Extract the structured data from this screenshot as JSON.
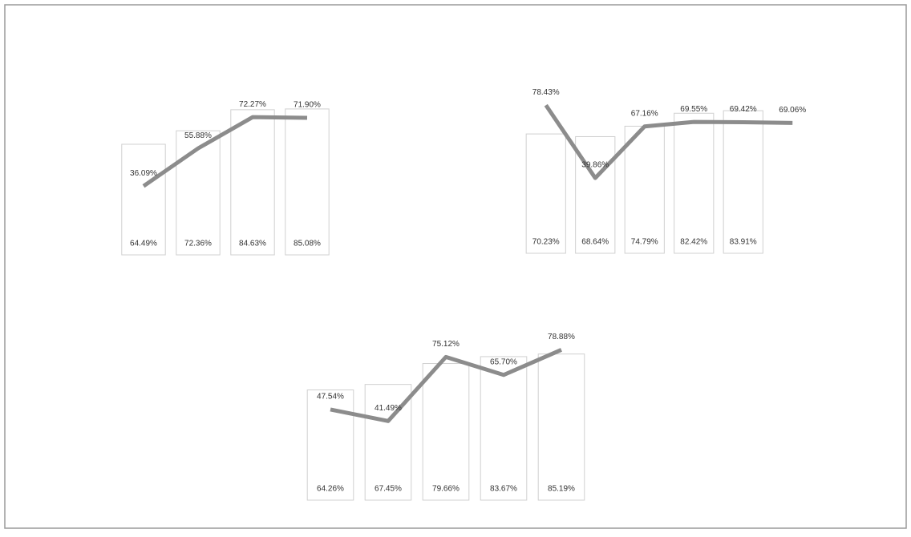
{
  "chart_data": [
    {
      "type": "bar-line",
      "categories": [
        null,
        null,
        null,
        null
      ],
      "series": [
        {
          "type": "bar",
          "color": "#ffffff",
          "values": [
            64.49,
            72.36,
            84.63,
            85.08
          ],
          "value_labels": [
            "64.49%",
            "72.36%",
            "84.63%",
            "85.08%"
          ]
        },
        {
          "type": "line",
          "axis": "y2",
          "color": "#8c8c8c",
          "values": [
            36.09,
            55.88,
            72.27,
            71.9
          ],
          "value_labels": [
            "36.09%",
            "55.88%",
            "72.27%",
            "71.90%"
          ]
        }
      ],
      "ylim": [
        0,
        100
      ],
      "y2lim": [
        0,
        90
      ]
    },
    {
      "type": "bar-line",
      "categories": [
        null,
        null,
        null,
        null,
        null,
        null
      ],
      "series": [
        {
          "type": "bar",
          "color": "#ffffff",
          "values": [
            70.23,
            68.64,
            74.79,
            82.42,
            83.91,
            null
          ],
          "value_labels": [
            "70.23%",
            "68.64%",
            "74.79%",
            "82.42%",
            "83.91%",
            null
          ]
        },
        {
          "type": "line",
          "axis": "y2",
          "color": "#8c8c8c",
          "values": [
            78.43,
            39.86,
            67.16,
            69.55,
            69.42,
            69.06
          ],
          "value_labels": [
            "78.43%",
            "39.86%",
            "67.16%",
            "69.55%",
            "69.42%",
            "69.06%"
          ]
        }
      ],
      "ylim": [
        0,
        100
      ],
      "y2lim": [
        0,
        90
      ]
    },
    {
      "type": "bar-line",
      "categories": [
        null,
        null,
        null,
        null,
        null
      ],
      "series": [
        {
          "type": "bar",
          "color": "#ffffff",
          "values": [
            64.26,
            67.45,
            79.66,
            83.67,
            85.19
          ],
          "value_labels": [
            "64.26%",
            "67.45%",
            "79.66%",
            "83.67%",
            "85.19%"
          ]
        },
        {
          "type": "line",
          "axis": "y2",
          "color": "#8c8c8c",
          "values": [
            47.54,
            41.49,
            75.12,
            65.7,
            78.88
          ],
          "value_labels": [
            "47.54%",
            "41.49%",
            "75.12%",
            "65.70%",
            "78.88%"
          ]
        }
      ],
      "ylim": [
        0,
        100
      ],
      "y2lim": [
        0,
        90
      ]
    }
  ]
}
